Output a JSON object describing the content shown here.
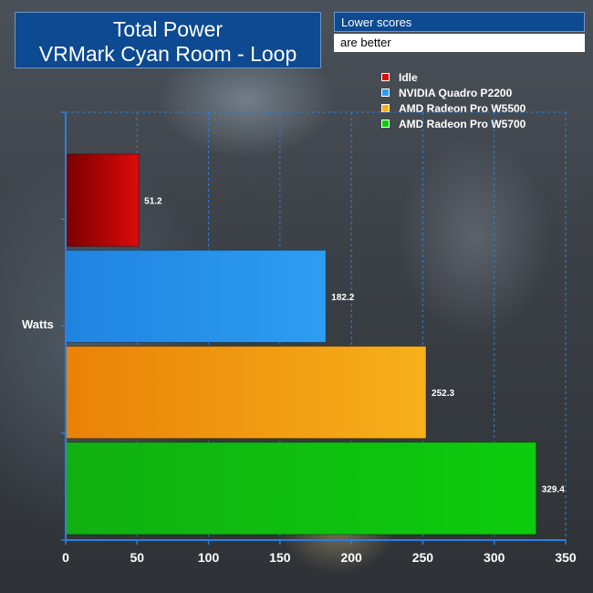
{
  "title_line1": "Total Power",
  "title_line2": "VRMark Cyan Room - Loop",
  "note_line1": "Lower scores",
  "note_line2": "are better",
  "chart_data": {
    "type": "bar",
    "orientation": "horizontal",
    "title": "Total Power VRMark Cyan Room - Loop",
    "ylabel": "Watts",
    "xlabel": "",
    "xlim": [
      0,
      350
    ],
    "xticks": [
      0,
      50,
      100,
      150,
      200,
      250,
      300,
      350
    ],
    "grid": true,
    "legend_position": "top-right",
    "series": [
      {
        "name": "Idle",
        "value": 51.2,
        "label": "51.2",
        "color": "#dd0a0a",
        "color_dark": "#7a0000"
      },
      {
        "name": "NVIDIA Quadro P2200",
        "value": 182.2,
        "label": "182.2",
        "color": "#2d9df2",
        "color_dark": "#1f84e0"
      },
      {
        "name": "AMD Radeon Pro W5500",
        "value": 252.3,
        "label": "252.3",
        "color": "#f7b01a",
        "color_dark": "#e98208"
      },
      {
        "name": "AMD Radeon Pro W5700",
        "value": 329.4,
        "label": "329.4",
        "color": "#0dcc0d",
        "color_dark": "#11b011"
      }
    ]
  }
}
